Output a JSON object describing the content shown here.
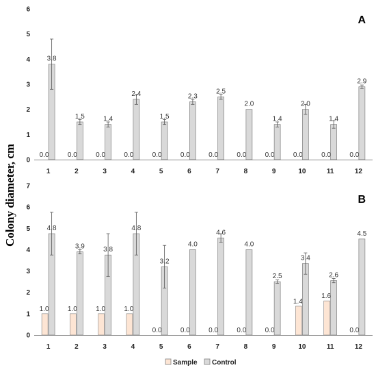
{
  "ylabel": "Colony diameter, cm",
  "colors": {
    "sample": "#fde5d4",
    "control": "#d9d9d9",
    "edge": "#7f7f7f",
    "axis": "#888888"
  },
  "legend": {
    "sample": "Sample",
    "control": "Control"
  },
  "chart_data": [
    {
      "type": "bar",
      "panel": "A",
      "categories": [
        "1",
        "2",
        "3",
        "4",
        "5",
        "6",
        "7",
        "8",
        "9",
        "10",
        "11",
        "12"
      ],
      "ylim": [
        0,
        6
      ],
      "yticks": [
        "0",
        "1",
        "2",
        "3",
        "4",
        "5",
        "6"
      ],
      "series": [
        {
          "name": "Sample",
          "values": [
            0,
            0,
            0,
            0,
            0,
            0,
            0,
            0,
            0,
            0,
            0,
            0
          ],
          "labels": [
            "0.0",
            "0.0",
            "0.0",
            "0.0",
            "0.0",
            "0.0",
            "0.0",
            "0.0",
            "0.0",
            "0.0",
            "0.0",
            "0.0"
          ],
          "errors": [
            0,
            0,
            0,
            0,
            0,
            0,
            0,
            0,
            0,
            0,
            0,
            0
          ]
        },
        {
          "name": "Control",
          "values": [
            3.8,
            1.5,
            1.4,
            2.4,
            1.5,
            2.3,
            2.5,
            2.0,
            1.4,
            2.0,
            1.4,
            2.9
          ],
          "labels": [
            "3.8",
            "1.5",
            "1.4",
            "2.4",
            "1.5",
            "2.3",
            "2.5",
            "2.0",
            "1.4",
            "2.0",
            "1.4",
            "2.9"
          ],
          "errors": [
            1.0,
            0.1,
            0.1,
            0.2,
            0.1,
            0.1,
            0.1,
            0,
            0.1,
            0.2,
            0.15,
            0.07
          ]
        }
      ],
      "legend": "none"
    },
    {
      "type": "bar",
      "panel": "B",
      "categories": [
        "1",
        "2",
        "3",
        "4",
        "5",
        "6",
        "7",
        "8",
        "9",
        "10",
        "11",
        "12"
      ],
      "ylim": [
        0,
        7
      ],
      "yticks": [
        "0",
        "1",
        "2",
        "3",
        "4",
        "5",
        "6",
        "7"
      ],
      "series": [
        {
          "name": "Sample",
          "values": [
            1.0,
            1.0,
            1.0,
            1.0,
            0,
            0,
            0,
            0,
            0,
            1.35,
            1.6,
            0
          ],
          "labels": [
            "1.0",
            "1.0",
            "1.0",
            "1.0",
            "0.0",
            "0.0",
            "0.0",
            "0.0",
            "0.0",
            "1.4",
            "1.6",
            "0.0"
          ],
          "errors": [
            0,
            0,
            0,
            0,
            0,
            0,
            0,
            0,
            0,
            0,
            0,
            0
          ]
        },
        {
          "name": "Control",
          "values": [
            4.75,
            3.9,
            3.75,
            4.75,
            3.2,
            4.0,
            4.55,
            4.0,
            2.5,
            3.35,
            2.55,
            4.5
          ],
          "labels": [
            "4.8",
            "3.9",
            "3.8",
            "4.8",
            "3.2",
            "4.0",
            "4.6",
            "4.0",
            "2.5",
            "3.4",
            "2.6",
            "4.5"
          ],
          "errors": [
            1.0,
            0.1,
            1.0,
            1.0,
            1.0,
            0,
            0.2,
            0,
            0.08,
            0.5,
            0.1,
            0
          ]
        }
      ],
      "legend": "bottom-center"
    }
  ]
}
